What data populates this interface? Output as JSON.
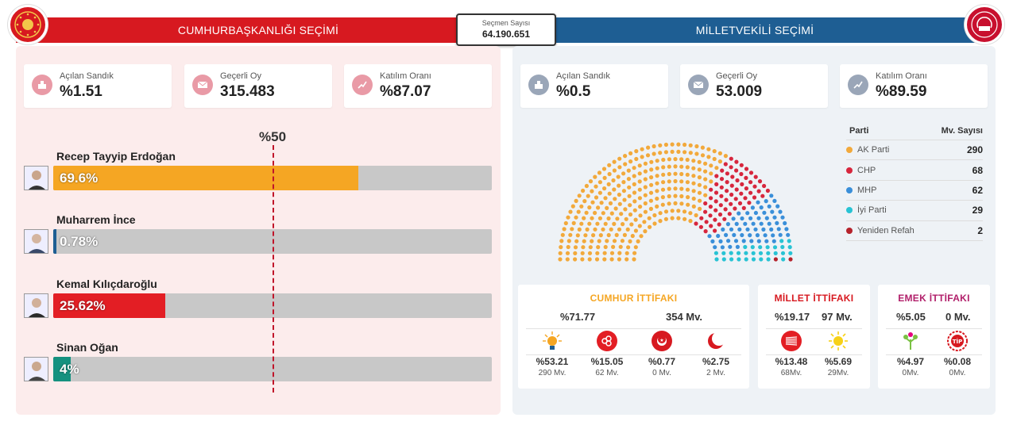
{
  "header": {
    "left_title": "CUMHURBAŞKANLIĞI SEÇİMİ",
    "right_title": "MİLLETVEKİLİ SEÇİMİ",
    "voters_label": "Seçmen Sayısı",
    "voters_value": "64.190.651"
  },
  "presidential": {
    "stats": [
      {
        "label": "Açılan Sandık",
        "value": "%1.51",
        "icon": "ballot-box-icon"
      },
      {
        "label": "Geçerli Oy",
        "value": "315.483",
        "icon": "envelope-icon"
      },
      {
        "label": "Katılım Oranı",
        "value": "%87.07",
        "icon": "trend-chart-icon"
      }
    ],
    "threshold_label": "%50",
    "threshold": 50,
    "candidates": [
      {
        "name": "Recep Tayyip Erdoğan",
        "pct_label": "69.6%",
        "pct": 69.6,
        "color": "#f5a623"
      },
      {
        "name": "Muharrem İnce",
        "pct_label": "0.78%",
        "pct": 0.78,
        "color": "#1e5e93"
      },
      {
        "name": "Kemal Kılıçdaroğlu",
        "pct_label": "25.62%",
        "pct": 25.62,
        "color": "#e31e24"
      },
      {
        "name": "Sinan Oğan",
        "pct_label": "4%",
        "pct": 4,
        "color": "#15917f"
      }
    ]
  },
  "parliamentary": {
    "stats": [
      {
        "label": "Açılan Sandık",
        "value": "%0.5",
        "icon": "ballot-box-icon"
      },
      {
        "label": "Geçerli Oy",
        "value": "53.009",
        "icon": "envelope-icon"
      },
      {
        "label": "Katılım Oranı",
        "value": "%89.59",
        "icon": "trend-chart-icon"
      }
    ],
    "table_headers": {
      "party": "Parti",
      "seats": "Mv. Sayısı"
    },
    "parties": [
      {
        "name": "AK Parti",
        "seats": 290,
        "color": "#f2a93b"
      },
      {
        "name": "CHP",
        "seats": 68,
        "color": "#d7263d"
      },
      {
        "name": "MHP",
        "seats": 62,
        "color": "#3a8fd9"
      },
      {
        "name": "İyi Parti",
        "seats": 29,
        "color": "#28c3d4"
      },
      {
        "name": "Yeniden Refah",
        "seats": 2,
        "color": "#b5222b"
      }
    ],
    "alliances": [
      {
        "title": "CUMHUR İTTİFAKI",
        "color": "#f5a623",
        "pct": "%71.77",
        "seats": "354 Mv.",
        "parties": [
          {
            "pct": "%53.21",
            "mv": "290 Mv.",
            "icon": "bulb-icon"
          },
          {
            "pct": "%15.05",
            "mv": "62 Mv.",
            "icon": "crescents-icon"
          },
          {
            "pct": "%0.77",
            "mv": "0 Mv.",
            "icon": "crescent-star-icon"
          },
          {
            "pct": "%2.75",
            "mv": "2 Mv.",
            "icon": "crescent-icon"
          }
        ]
      },
      {
        "title": "MİLLET İTTİFAKI",
        "color": "#d71920",
        "pct": "%19.17",
        "seats": "97 Mv.",
        "parties": [
          {
            "pct": "%13.48",
            "mv": "68Mv.",
            "icon": "six-arrows-icon"
          },
          {
            "pct": "%5.69",
            "mv": "29Mv.",
            "icon": "sun-icon"
          }
        ]
      },
      {
        "title": "EMEK İTTİFAKI",
        "color": "#b11f6a",
        "pct": "%5.05",
        "seats": "0 Mv.",
        "parties": [
          {
            "pct": "%4.97",
            "mv": "0Mv.",
            "icon": "tree-icon"
          },
          {
            "pct": "%0.08",
            "mv": "0Mv.",
            "icon": "tip-icon"
          }
        ]
      }
    ]
  }
}
